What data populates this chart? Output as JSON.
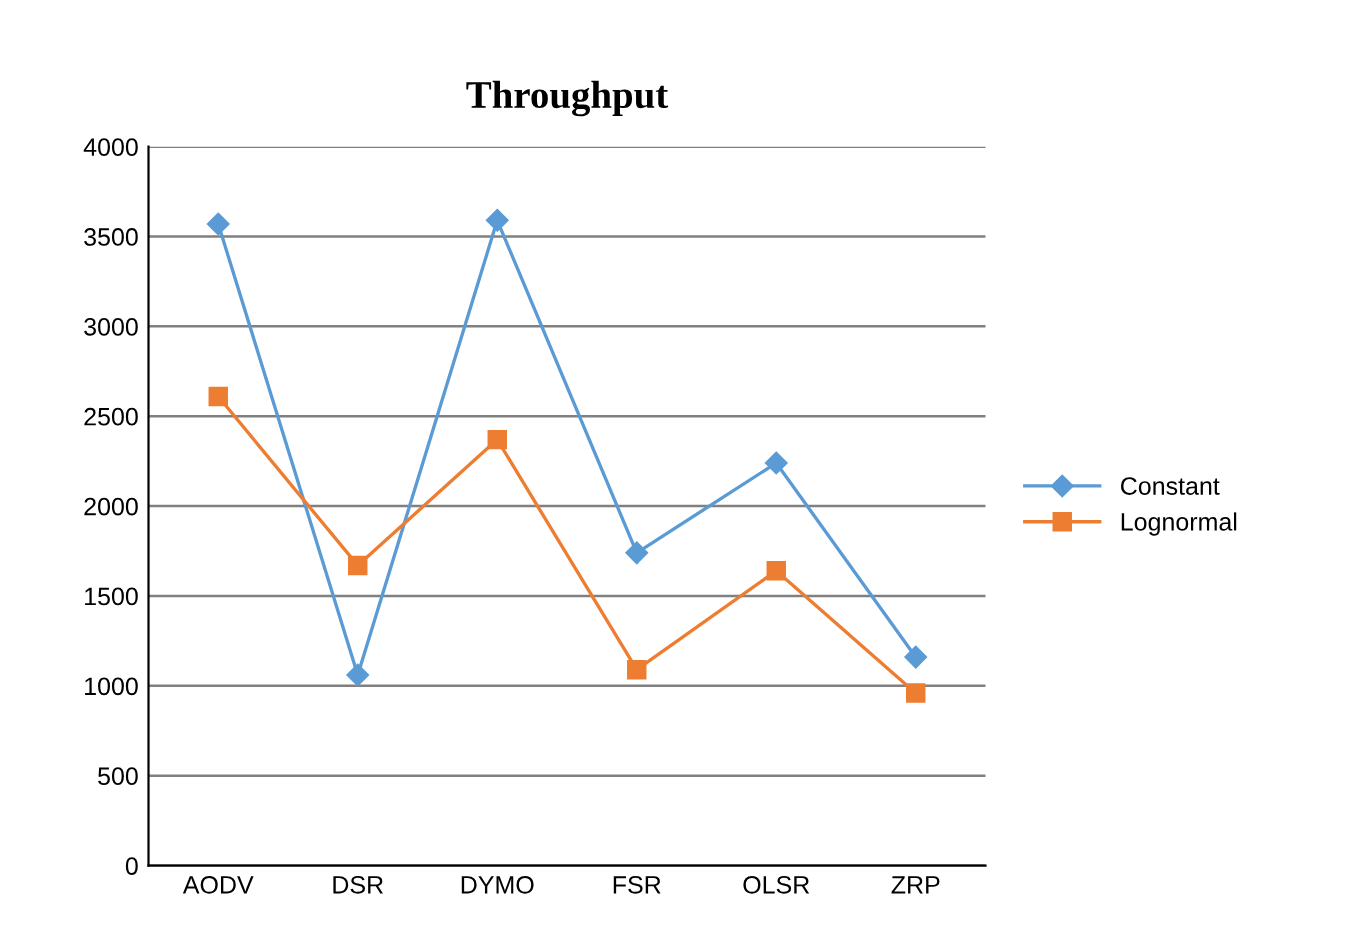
{
  "chart_data": {
    "type": "line",
    "title": "Throughput",
    "categories": [
      "AODV",
      "DSR",
      "DYMO",
      "FSR",
      "OLSR",
      "ZRP"
    ],
    "series": [
      {
        "name": "Constant",
        "color": "#5b9bd5",
        "marker": "diamond",
        "values": [
          3570,
          1060,
          3590,
          1740,
          2240,
          1160
        ]
      },
      {
        "name": "Lognormal",
        "color": "#ed7d31",
        "marker": "square",
        "values": [
          2610,
          1670,
          2370,
          1090,
          1640,
          960
        ]
      }
    ],
    "ylim": [
      0,
      4000
    ],
    "yticks": [
      0,
      500,
      1000,
      1500,
      2000,
      2500,
      3000,
      3500,
      4000
    ],
    "grid": "y",
    "legend": "right",
    "line_style": "solid"
  }
}
